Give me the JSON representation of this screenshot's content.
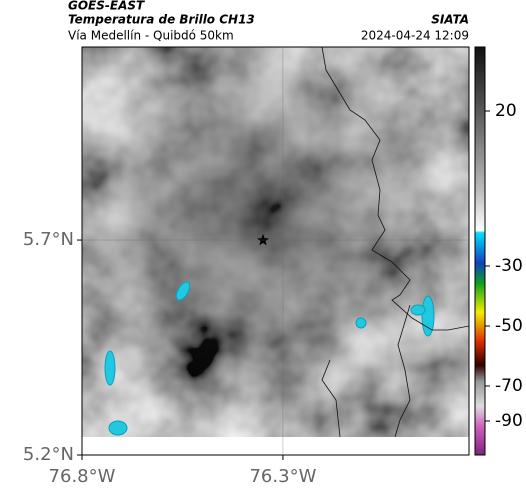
{
  "header": {
    "source": "GOES-EAST",
    "title": "Temperatura de Brillo CH13",
    "org": "SIATA",
    "subtitle": "Vía Medellín - Quibdó 50km",
    "timestamp": "2024-04-24 12:09"
  },
  "map": {
    "xlim": [
      -76.8,
      -75.837
    ],
    "ylim": [
      5.2,
      6.149
    ],
    "xticks": [
      {
        "value": -76.8,
        "label": "76.8°W"
      },
      {
        "value": -76.3,
        "label": "76.3°W"
      }
    ],
    "yticks": [
      {
        "value": 5.7,
        "label": "5.7°N"
      },
      {
        "value": 5.2,
        "label": "5.2°N"
      }
    ],
    "grid": true
  },
  "colorbar": {
    "ticks": [
      20,
      -30,
      -50,
      -70,
      -90
    ]
  }
}
